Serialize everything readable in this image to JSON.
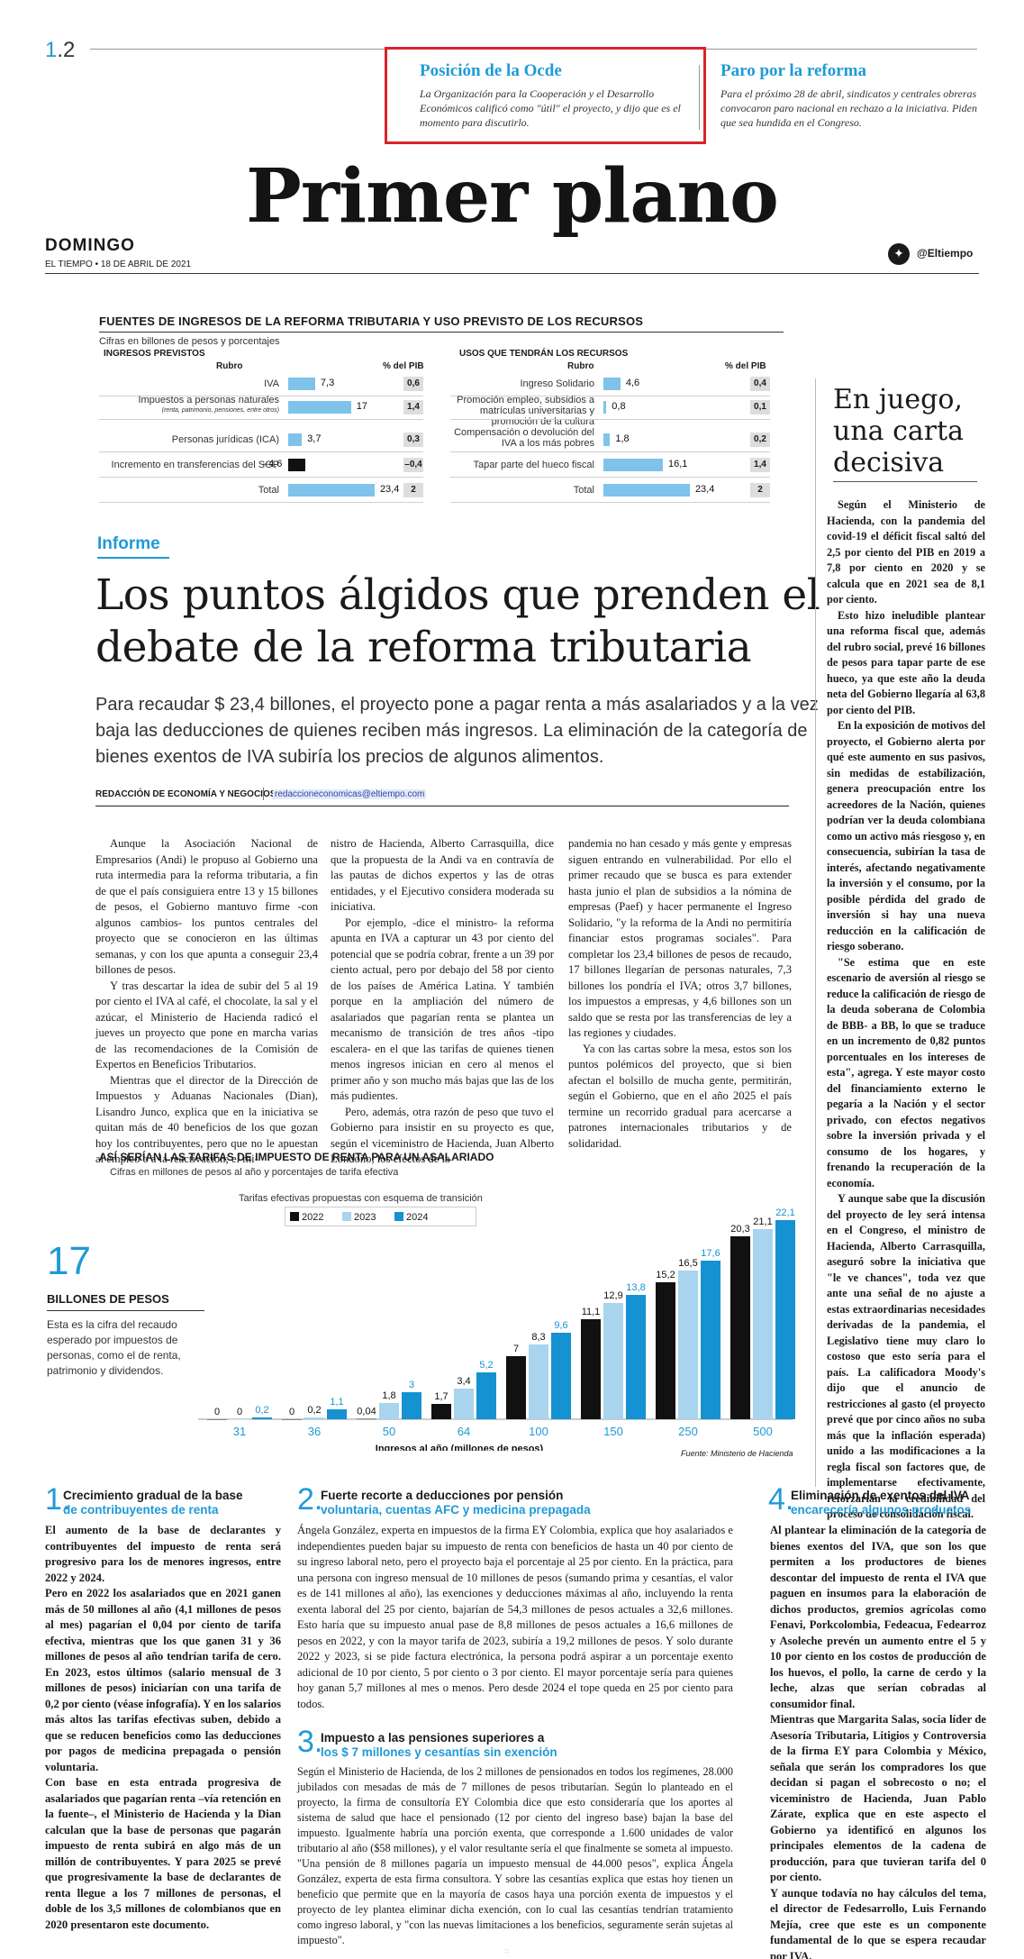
{
  "header": {
    "page_section": "1",
    "page_sub": ".2",
    "title": "Primer plano",
    "day": "DOMINGO",
    "date": "EL TIEMPO • 18 DE ABRIL DE 2021",
    "twitter_icon": "twitter-bird-icon",
    "twitter_handle": "@Eltiempo",
    "teasers": [
      {
        "title": "Posición de la Ocde",
        "text": "La Organización para la Cooperación y el Desarrollo Económicos calificó como \"útil\" el proyecto, y dijo que es el momento para discutirlo."
      },
      {
        "title": "Paro por la reforma",
        "text": "Para el próximo 28 de abril, sindicatos y centrales obreras convocaron paro nacional en rechazo a la iniciativa. Piden que sea hundida en el Congreso."
      }
    ]
  },
  "revenue": {
    "title": "FUENTES DE INGRESOS DE LA REFORMA TRIBUTARIA Y USO PREVISTO DE LOS RECURSOS",
    "subtitle": "Cifras en billones de pesos y porcentajes",
    "left_heading": "INGRESOS PREVISTOS",
    "right_heading": "USOS QUE TENDRÁN LOS RECURSOS",
    "col_rubro": "Rubro",
    "col_pib": "% del PIB",
    "income": [
      {
        "label": "IVA",
        "note": "",
        "value": 7.3,
        "value_text": "7,3",
        "pib": "0,6"
      },
      {
        "label": "Impuestos a personas naturales",
        "note": "(renta, patrimonio, pensiones, entre otros)",
        "value": 17,
        "value_text": "17",
        "pib": "1,4"
      },
      {
        "label": "Personas jurídicas (ICA)",
        "note": "",
        "value": 3.7,
        "value_text": "3,7",
        "pib": "0,3"
      },
      {
        "label": "Incremento en transferencias del SGP",
        "note": "",
        "value": -4.6,
        "value_text": "–4,6",
        "pib": "–0,4"
      },
      {
        "label": "Total",
        "note": "",
        "value": 23.4,
        "value_text": "23,4",
        "pib": "2"
      }
    ],
    "uses": [
      {
        "label": "Ingreso Solidario",
        "value": 4.6,
        "value_text": "4,6",
        "pib": "0,4"
      },
      {
        "label": "Promoción empleo, subsidios a matrículas universitarias y promoción de la cultura",
        "value": 0.8,
        "value_text": "0,8",
        "pib": "0,1"
      },
      {
        "label": "Compensación o devolución del IVA a los más pobres",
        "value": 1.8,
        "value_text": "1,8",
        "pib": "0,2"
      },
      {
        "label": "Tapar parte del hueco fiscal",
        "value": 16.1,
        "value_text": "16,1",
        "pib": "1,4"
      },
      {
        "label": "Total",
        "value": 23.4,
        "value_text": "23,4",
        "pib": "2"
      }
    ]
  },
  "article": {
    "kicker": "Informe",
    "headline": "Los puntos álgidos que prenden el debate de la reforma tributaria",
    "deck": "Para recaudar $ 23,4 billones, el proyecto pone a pagar renta a más asalariados y a la vez baja las deducciones de quienes reciben más ingresos. La eliminación de la categoría de bienes exentos de IVA subiría los precios de algunos alimentos.",
    "byline": "REDACCIÓN DE ECONOMÍA Y NEGOCIOS",
    "email": "redaccioneconomicas@eltiempo.com",
    "col1": [
      "Aunque la Asociación Nacional de Empresarios (Andi) le propuso al Gobierno una ruta intermedia para la reforma tributaria, a fin de que el país consiguiera entre 13 y 15 billones de pesos, el Gobierno mantuvo firme -con algunos cambios- los puntos centrales del proyecto que se conocieron en las últimas semanas, y con los que apunta a conseguir 23,4 billones de pesos.",
      "Y tras descartar la idea de subir del 5 al 19 por ciento el IVA al café, el chocolate, la sal y el azúcar, el Ministerio de Hacienda radicó el jueves un proyecto que pone en marcha varias de las recomendaciones de la Comisión de Expertos en Beneficios Tributarios.",
      "Mientras que el director de la Dirección de Impuestos y Aduanas Nacionales (Dian), Lisandro Junco, explica que en la iniciativa se quitan más de 40 beneficios de los que gozan hoy los contribuyentes, pero que no le apuestan al empleo o a la reactivación; el mi-"
    ],
    "col2": [
      "nistro de Hacienda, Alberto Carrasquilla, dice que la propuesta de la Andi va en contravía de las pautas de dichos expertos y las de otras entidades, y el Ejecutivo considera moderada su iniciativa.",
      "Por ejemplo, -dice el ministro- la reforma apunta en IVA a capturar un 43 por ciento del potencial que se podría cobrar, frente a un 39 por ciento actual, pero por debajo del 58 por ciento de los países de América Latina. Y también porque en la ampliación del número de asalariados que pagarían renta se plantea un mecanismo de transición de tres años -tipo escalera- en el que las tarifas de quienes tienen menos ingresos inician en cero al menos el primer año y son mucho más bajas que las de los más pudientes.",
      "Pero, además, otra razón de peso que tuvo el Gobierno para insistir en su proyecto es que, según el viceministro de Hacienda, Juan Alberto Londoño, los efectos de la"
    ],
    "col3": [
      "pandemia no han cesado y más gente y empresas siguen entrando en vulnerabilidad. Por ello el primer recaudo que se busca es para extender hasta junio el plan de subsidios a la nómina de empresas (Paef) y hacer permanente el Ingreso Solidario, \"y la reforma de la Andi no permitiría financiar estos programas sociales\". Para completar los 23,4 billones de pesos de recaudo, 17 billones llegarían de personas naturales, 7,3 billones los pondría el IVA; otros 3,7 billones, los impuestos a empresas, y 4,6 billones son un saldo que se resta por las transferencias de ley a las regiones y ciudades.",
      "Ya con las cartas sobre la mesa, estos son los puntos polémicos del proyecto, que si bien afectan el bolsillo de mucha gente, permitirán, según el Gobierno, que en el año 2025 el país termine un recorrido gradual para acercarse a patrones internacionales tributarios y de solidaridad."
    ]
  },
  "sidebar": {
    "title": "En juego, una carta decisiva",
    "paragraphs": [
      "Según el Ministerio de Hacienda, con la pandemia del covid-19 el déficit fiscal saltó del 2,5 por ciento del PIB en 2019 a 7,8 por ciento en 2020 y se calcula que en 2021 sea de 8,1 por ciento.",
      "Esto hizo ineludible plantear una reforma fiscal que, además del rubro social, prevé 16 billones de pesos para tapar parte de ese hueco, ya que este año la deuda neta del Gobierno llegaría al 63,8 por ciento del PIB.",
      "En la exposición de motivos del proyecto, el Gobierno alerta por qué este aumento en sus pasivos, sin medidas de estabilización, genera preocupación entre los acreedores de la Nación, quienes podrían ver la deuda colombiana como un activo más riesgoso y, en consecuencia, subirían la tasa de interés, afectando negativamente la inversión y el consumo, por la posible pérdida del grado de inversión si hay una nueva reducción en la calificación de riesgo soberano.",
      "\"Se estima que en este escenario de aversión al riesgo se reduce la calificación de riesgo de la deuda soberana de Colombia de BBB- a BB, lo que se traduce en un incremento de 0,82 puntos porcentuales en los intereses de esta\", agrega. Y este mayor costo del financiamiento externo le pegaría a la Nación y el sector privado, con efectos negativos sobre la inversión privada y el consumo de los hogares, y frenando la recuperación de la economía.",
      "Y aunque sabe que la discusión del proyecto de ley será intensa en el Congreso, el ministro de Hacienda, Alberto Carrasquilla, aseguró sobre la iniciativa que \"le ve chances\", toda vez que ante una señal de no ajuste a estas extraordinarias necesidades derivadas de la pandemia, el Legislativo tiene muy claro lo costoso que esto sería para el país. La calificadora Moody's dijo que el anuncio de restricciones al gasto (el proyecto prevé que por cinco años no suba más que la inflación esperada) unido a las modificaciones a la regla fiscal son factores que, de implementarse efectivamente, reforzarían la credibilidad del proceso de consolidación fiscal."
    ]
  },
  "tax_chart": {
    "big_number": "17",
    "big_label": "BILLONES DE PESOS",
    "big_desc": "Esta es la cifra del recaudo esperado por impuestos de personas, como el de renta, patrimonio y dividendos.",
    "legend_title": "Tarifas efectivas propuestas con esquema de transición",
    "source": "Fuente: Ministerio de Hacienda"
  },
  "chart_data": {
    "type": "bar",
    "title": "ASÍ SERÍAN LAS TARIFAS DE IMPUESTO DE RENTA PARA UN ASALARIADO",
    "subtitle": "Cifras en millones de pesos al año y porcentajes de tarifa efectiva",
    "xlabel": "Ingresos al año (millones de pesos)",
    "ylabel": "",
    "categories": [
      "31",
      "36",
      "50",
      "64",
      "100",
      "150",
      "250",
      "500"
    ],
    "series": [
      {
        "name": "2022",
        "color": "#111111",
        "values": [
          0,
          0,
          0.04,
          1.7,
          7,
          11.1,
          15.2,
          20.3
        ],
        "labels": [
          "0",
          "0",
          "0,04",
          "1,7",
          "7",
          "11,1",
          "15,2",
          "20,3"
        ]
      },
      {
        "name": "2023",
        "color": "#a9d4ee",
        "values": [
          0,
          0.2,
          1.8,
          3.4,
          8.3,
          12.9,
          16.5,
          21.1
        ],
        "labels": [
          "0",
          "0,2",
          "1,8",
          "3,4",
          "8,3",
          "12,9",
          "16,5",
          "21,1"
        ]
      },
      {
        "name": "2024",
        "color": "#1592d1",
        "values": [
          0.2,
          1.1,
          3,
          5.2,
          9.6,
          13.8,
          17.6,
          22.1
        ],
        "labels": [
          "0,2",
          "1,1",
          "3",
          "5,2",
          "9,6",
          "13,8",
          "17,6",
          "22,1"
        ]
      }
    ],
    "ylim": [
      0,
      23
    ],
    "legend": "top-left",
    "grid": false
  },
  "sections": [
    {
      "num": "1.",
      "title": "Crecimiento gradual de la base",
      "subtitle": "de contribuyentes de renta",
      "text": "El aumento de la base de declarantes y contribuyentes del impuesto de renta será progresivo para los de menores ingresos, entre 2022 y 2024.\nPero en 2022 los asalariados que en 2021 ganen más de 50 millones al año (4,1 millones de pesos al mes) pagarían el 0,04 por ciento de tarifa efectiva, mientras que los que ganen 31 y 36 millones de pesos al año tendrían tarifa de cero. En 2023, estos últimos (salario mensual de 3 millones de pesos) iniciarían con una tarifa de 0,2 por ciento (véase infografía). Y en los salarios más altos las tarifas efectivas suben, debido a que se reducen beneficios como las deducciones por pagos de medicina prepagada o pensión voluntaria.\nCon base en esta entrada progresiva de asalariados que pagarían renta –vía retención en la fuente–, el Ministerio de Hacienda y la Dian calculan que la base de personas que pagarán impuesto de renta subirá en algo más de un millón de contribuyentes. Y para 2025 se prevé que progresivamente la base de declarantes de renta llegue a los 7 millones de personas, el doble de los 3,5 millones de colombianos que en 2020 presentaron este documento."
    },
    {
      "num": "2.",
      "title": "Fuerte recorte a deducciones por pensión",
      "subtitle": "voluntaria, cuentas AFC y medicina prepagada",
      "text": "Ángela González, experta en impuestos de la firma EY Colombia, explica que hoy asalariados e independientes pueden bajar su impuesto de renta con beneficios de hasta un 40 por ciento de su ingreso laboral neto, pero el proyecto baja el porcentaje al 25 por ciento. En la práctica, para una persona con ingreso mensual de 10 millones de pesos (sumando prima y cesantías, el valor es de 141 millones al año), las exenciones y deducciones máximas al año, incluyendo la renta exenta laboral del 25 por ciento, bajarían de 54,3 millones de pesos actuales a 32,6 millones. Esto haría que su impuesto anual pase de 8,8 millones de pesos actuales a 16,6 millones de pesos en 2022, y con la mayor tarifa de 2023, subiría a 19,2 millones de pesos. Y solo durante 2022 y 2023, si se pide factura electrónica, la persona podrá aspirar a un porcentaje exento adicional de 10 por ciento, 5 por ciento o 3 por ciento. El mayor porcentaje sería para quienes hoy ganan 5,7 millones al mes o menos. Pero desde 2024 el tope queda en 25 por ciento para todos."
    },
    {
      "num": "3.",
      "title": "Impuesto a las pensiones superiores a",
      "subtitle": "los $ 7 millones y cesantías sin exención",
      "text": "Según el Ministerio de Hacienda, de los 2 millones de pensionados en todos los regímenes, 28.000 jubilados con mesadas de más de 7 millones de pesos tributarían. Según lo planteado en el proyecto, la firma de consultoría EY Colombia dice que esto consideraría que los aportes al sistema de salud que hace el pensionado (12 por ciento del ingreso base) bajan la base del impuesto. Igualmente habría una porción exenta, que corresponde a 1.600 unidades de valor tributario al año ($58 millones), y el valor resultante sería el que finalmente se someta al impuesto. \"Una pensión de 8 millones pagaría un impuesto mensual de 44.000 pesos\", explica Ángela González, experta de esta firma consultora. Y sobre las cesantías explica que estas hoy tienen un beneficio que permite que en la mayoría de casos haya una porción exenta de impuestos y el proyecto de ley plantea eliminar dicha exención, con lo cual las cesantías tendrían tratamiento como ingreso laboral, y \"con las nuevas limitaciones a los beneficios, seguramente serán sujetas al impuesto\"."
    },
    {
      "num": "4.",
      "title": "Eliminación de exentos del IVA",
      "subtitle": "encarecería algunos productos",
      "text": "Al plantear la eliminación de la categoría de bienes exentos del IVA, que son los que permiten a los productores de bienes descontar del impuesto de renta el IVA que paguen en insumos para la elaboración de dichos productos, gremios agrícolas como Fenavi, Porkcolombia, Fedeacua, Fedearroz y Asoleche prevén un aumento entre el 5 y 10 por ciento en los costos de producción de los huevos, el pollo, la carne de cerdo y la leche, alzas que serían cobradas al consumidor final.\nMientras que Margarita Salas, socia líder de Asesoría Tributaria, Litigios y Controversia de la firma EY para Colombia y México, señala que serán los compradores los que decidan si pagan el sobrecosto o no; el viceministro de Hacienda, Juan Pablo Zárate, explica que en este aspecto el Gobierno ya identificó en algunos los principales elementos de la cadena de producción, para que tuvieran tarifa del 0 por ciento.\nY aunque todavía no hay cálculos del tema, el director de Fedesarrollo, Luis Fernando Mejía, cree que este es un componente fundamental de lo que se espera recaudar por IVA."
    }
  ]
}
